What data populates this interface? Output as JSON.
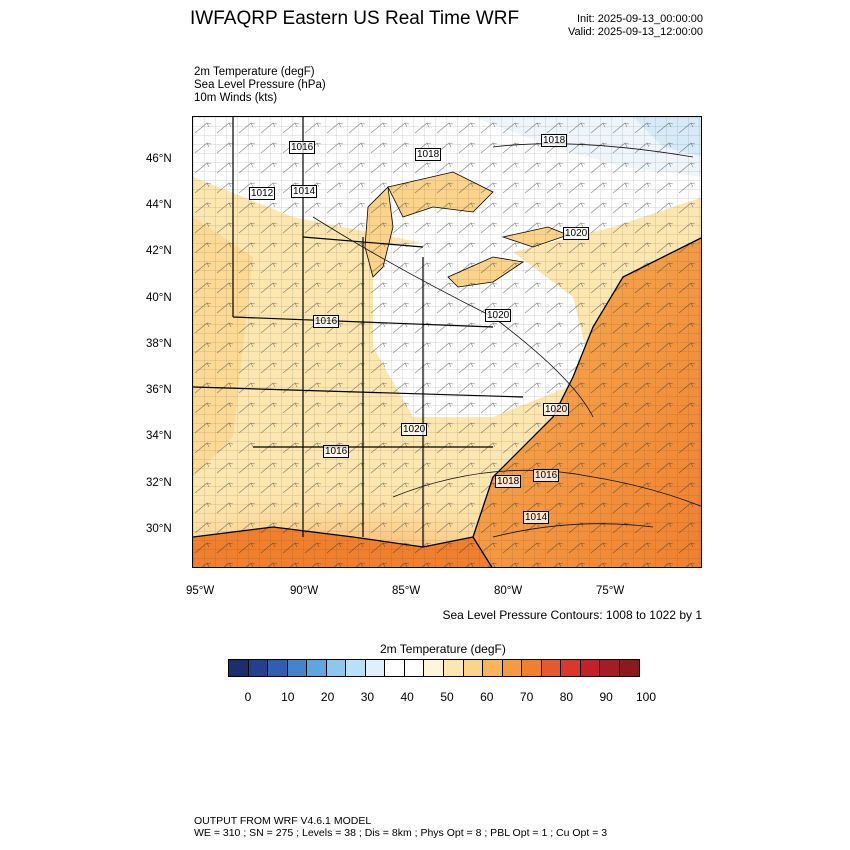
{
  "header": {
    "title": "IWFAQRP Eastern US Real Time WRF",
    "init": "Init: 2025-09-13_00:00:00",
    "valid": "Valid: 2025-09-13_12:00:00"
  },
  "fields": [
    "2m Temperature   (degF)",
    "Sea Level Pressure   (hPa)",
    "10m Winds   (kts)"
  ],
  "map": {
    "lat_ticks": [
      "46°N",
      "44°N",
      "42°N",
      "40°N",
      "38°N",
      "36°N",
      "34°N",
      "32°N",
      "30°N"
    ],
    "lon_ticks": [
      "95°W",
      "90°W",
      "85°W",
      "80°W",
      "75°W"
    ],
    "slp_labels": [
      "1016",
      "1018",
      "1018",
      "1012",
      "1014",
      "1020",
      "1020",
      "1016",
      "1020",
      "1020",
      "1016",
      "1016",
      "1018",
      "1014"
    ],
    "contour_note": "Sea Level Pressure Contours: 1008 to 1022 by 1"
  },
  "colorbar": {
    "title": "2m Temperature  (degF)",
    "labels": [
      "0",
      "10",
      "20",
      "30",
      "40",
      "50",
      "60",
      "70",
      "80",
      "90",
      "100"
    ],
    "colors": [
      "#1b2f6e",
      "#243f8c",
      "#2f5fae",
      "#4584c8",
      "#5ea6dd",
      "#8dc8ec",
      "#b9e0f5",
      "#dff0fa",
      "#ffffff",
      "#ffffff",
      "#fff6d9",
      "#fde7b0",
      "#fbd38a",
      "#f8b45a",
      "#f59a3e",
      "#f07f2e",
      "#e55a2c",
      "#d73a2b",
      "#c32029",
      "#a51c24",
      "#8b1a1e"
    ]
  },
  "footer": {
    "line1": "OUTPUT FROM WRF V4.6.1 MODEL",
    "line2": "WE = 310 ; SN = 275 ; Levels = 38 ; Dis = 8km ; Phys Opt = 8 ; PBL Opt = 1 ; Cu Opt = 3"
  }
}
